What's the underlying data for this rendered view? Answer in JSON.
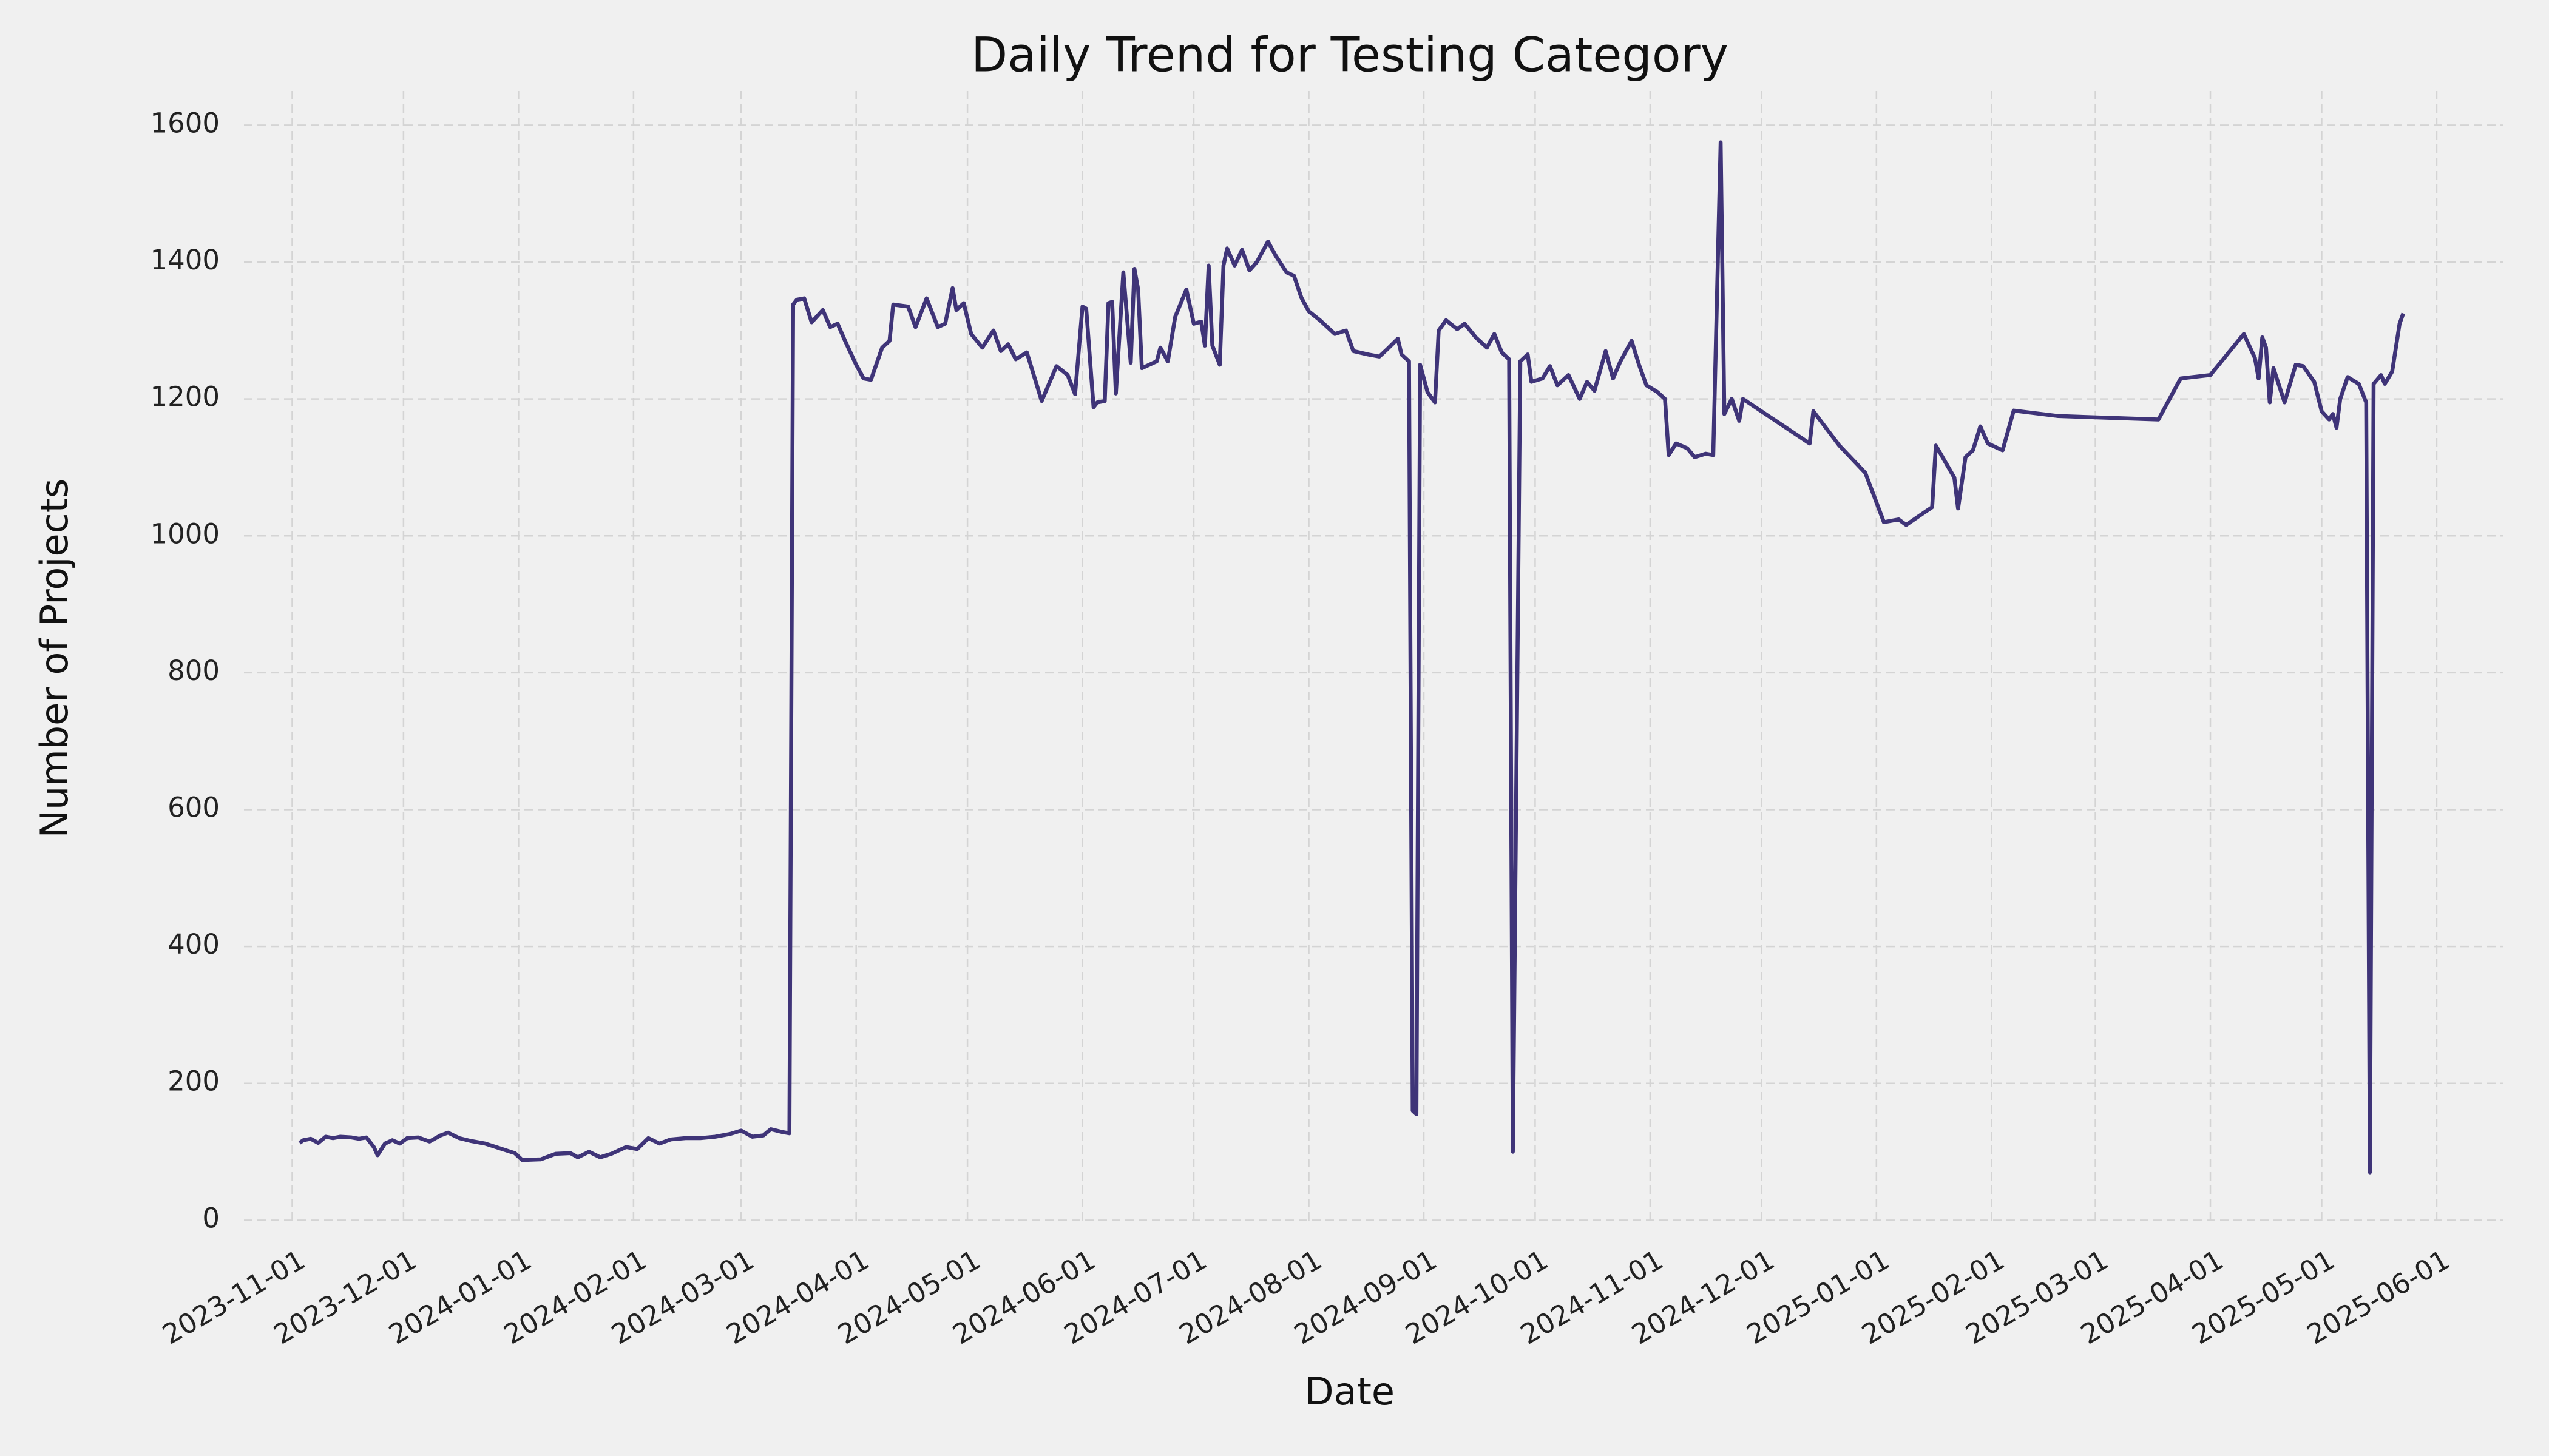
{
  "chart_data": {
    "type": "line",
    "title": "Daily Trend for Testing Category",
    "xlabel": "Date",
    "ylabel": "Number of Projects",
    "color": "#3f3478",
    "grid": true,
    "xlim": [
      "2023-10-19",
      "2025-06-19"
    ],
    "xticks": [
      "2023-11-01",
      "2023-12-01",
      "2024-01-01",
      "2024-02-01",
      "2024-03-01",
      "2024-04-01",
      "2024-05-01",
      "2024-06-01",
      "2024-07-01",
      "2024-08-01",
      "2024-09-01",
      "2024-10-01",
      "2024-11-01",
      "2024-12-01",
      "2025-01-01",
      "2025-02-01",
      "2025-03-01",
      "2025-04-01",
      "2025-05-01",
      "2025-06-01"
    ],
    "ylim": [
      -5,
      1650
    ],
    "yticks": [
      0,
      200,
      400,
      600,
      800,
      1000,
      1200,
      1400,
      1600
    ],
    "x": [
      "2023-11-03",
      "2023-11-04",
      "2023-11-06",
      "2023-11-08",
      "2023-11-10",
      "2023-11-12",
      "2023-11-14",
      "2023-11-17",
      "2023-11-19",
      "2023-11-21",
      "2023-11-23",
      "2023-11-24",
      "2023-11-26",
      "2023-11-28",
      "2023-11-30",
      "2023-12-02",
      "2023-12-05",
      "2023-12-08",
      "2023-12-11",
      "2023-12-13",
      "2023-12-16",
      "2023-12-19",
      "2023-12-23",
      "2023-12-27",
      "2023-12-31",
      "2024-01-02",
      "2024-01-07",
      "2024-01-11",
      "2024-01-15",
      "2024-01-17",
      "2024-01-20",
      "2024-01-23",
      "2024-01-26",
      "2024-01-30",
      "2024-02-02",
      "2024-02-05",
      "2024-02-08",
      "2024-02-11",
      "2024-02-15",
      "2024-02-19",
      "2024-02-23",
      "2024-02-27",
      "2024-03-01",
      "2024-03-04",
      "2024-03-07",
      "2024-03-09",
      "2024-03-12",
      "2024-03-14",
      "2024-03-15",
      "2024-03-16",
      "2024-03-18",
      "2024-03-20",
      "2024-03-23",
      "2024-03-25",
      "2024-03-27",
      "2024-03-29",
      "2024-04-01",
      "2024-04-03",
      "2024-04-05",
      "2024-04-08",
      "2024-04-10",
      "2024-04-11",
      "2024-04-15",
      "2024-04-17",
      "2024-04-20",
      "2024-04-23",
      "2024-04-25",
      "2024-04-27",
      "2024-04-28",
      "2024-04-30",
      "2024-05-02",
      "2024-05-05",
      "2024-05-08",
      "2024-05-10",
      "2024-05-12",
      "2024-05-14",
      "2024-05-17",
      "2024-05-21",
      "2024-05-25",
      "2024-05-28",
      "2024-05-30",
      "2024-06-01",
      "2024-06-02",
      "2024-06-04",
      "2024-06-05",
      "2024-06-07",
      "2024-06-08",
      "2024-06-09",
      "2024-06-10",
      "2024-06-12",
      "2024-06-14",
      "2024-06-15",
      "2024-06-16",
      "2024-06-17",
      "2024-06-21",
      "2024-06-22",
      "2024-06-24",
      "2024-06-26",
      "2024-06-29",
      "2024-07-01",
      "2024-07-03",
      "2024-07-04",
      "2024-07-05",
      "2024-07-06",
      "2024-07-08",
      "2024-07-09",
      "2024-07-10",
      "2024-07-12",
      "2024-07-14",
      "2024-07-16",
      "2024-07-18",
      "2024-07-21",
      "2024-07-23",
      "2024-07-26",
      "2024-07-28",
      "2024-07-30",
      "2024-08-01",
      "2024-08-04",
      "2024-08-08",
      "2024-08-11",
      "2024-08-13",
      "2024-08-17",
      "2024-08-20",
      "2024-08-22",
      "2024-08-25",
      "2024-08-26",
      "2024-08-28",
      "2024-08-29",
      "2024-08-30",
      "2024-08-31",
      "2024-09-02",
      "2024-09-04",
      "2024-09-05",
      "2024-09-07",
      "2024-09-10",
      "2024-09-12",
      "2024-09-15",
      "2024-09-18",
      "2024-09-20",
      "2024-09-22",
      "2024-09-24",
      "2024-09-25",
      "2024-09-27",
      "2024-09-29",
      "2024-09-30",
      "2024-10-03",
      "2024-10-05",
      "2024-10-07",
      "2024-10-10",
      "2024-10-13",
      "2024-10-15",
      "2024-10-17",
      "2024-10-20",
      "2024-10-22",
      "2024-10-24",
      "2024-10-27",
      "2024-10-29",
      "2024-10-31",
      "2024-11-03",
      "2024-11-05",
      "2024-11-06",
      "2024-11-08",
      "2024-11-11",
      "2024-11-13",
      "2024-11-16",
      "2024-11-18",
      "2024-11-20",
      "2024-11-21",
      "2024-11-23",
      "2024-11-25",
      "2024-11-26",
      "2024-12-14",
      "2024-12-15",
      "2024-12-22",
      "2024-12-29",
      "2025-01-03",
      "2025-01-07",
      "2025-01-09",
      "2025-01-16",
      "2025-01-17",
      "2025-01-22",
      "2025-01-23",
      "2025-01-25",
      "2025-01-27",
      "2025-01-29",
      "2025-01-31",
      "2025-02-04",
      "2025-02-07",
      "2025-02-19",
      "2025-03-18",
      "2025-03-24",
      "2025-04-01",
      "2025-04-10",
      "2025-04-13",
      "2025-04-14",
      "2025-04-15",
      "2025-04-16",
      "2025-04-17",
      "2025-04-18",
      "2025-04-21",
      "2025-04-24",
      "2025-04-26",
      "2025-04-29",
      "2025-05-01",
      "2025-05-03",
      "2025-05-04",
      "2025-05-05",
      "2025-05-06",
      "2025-05-08",
      "2025-05-11",
      "2025-05-13",
      "2025-05-14",
      "2025-05-15",
      "2025-05-17",
      "2025-05-18",
      "2025-05-20",
      "2025-05-22",
      "2025-05-23"
    ],
    "values": [
      113,
      117,
      119,
      113,
      122,
      120,
      122,
      121,
      119,
      121,
      107,
      95,
      112,
      117,
      112,
      120,
      121,
      115,
      124,
      128,
      120,
      116,
      112,
      105,
      98,
      88,
      89,
      97,
      98,
      92,
      100,
      92,
      97,
      107,
      104,
      120,
      112,
      118,
      120,
      120,
      122,
      126,
      131,
      122,
      124,
      133,
      129,
      127,
      1338,
      1345,
      1347,
      1312,
      1330,
      1305,
      1310,
      1285,
      1250,
      1230,
      1228,
      1275,
      1285,
      1338,
      1335,
      1305,
      1347,
      1305,
      1310,
      1362,
      1330,
      1340,
      1295,
      1275,
      1300,
      1270,
      1280,
      1258,
      1268,
      1197,
      1248,
      1235,
      1207,
      1335,
      1332,
      1188,
      1195,
      1197,
      1340,
      1342,
      1208,
      1385,
      1253,
      1390,
      1360,
      1245,
      1255,
      1275,
      1255,
      1320,
      1360,
      1310,
      1313,
      1278,
      1395,
      1278,
      1250,
      1395,
      1420,
      1395,
      1418,
      1388,
      1400,
      1430,
      1410,
      1385,
      1380,
      1348,
      1328,
      1315,
      1295,
      1300,
      1270,
      1265,
      1262,
      1272,
      1288,
      1265,
      1255,
      160,
      155,
      1250,
      1210,
      1195,
      1300,
      1315,
      1302,
      1310,
      1290,
      1275,
      1295,
      1268,
      1258,
      100,
      1255,
      1265,
      1225,
      1230,
      1248,
      1220,
      1235,
      1200,
      1225,
      1212,
      1270,
      1230,
      1255,
      1285,
      1250,
      1220,
      1210,
      1200,
      1118,
      1135,
      1128,
      1115,
      1120,
      1118,
      1575,
      1178,
      1200,
      1168,
      1200,
      1135,
      1182,
      1132,
      1092,
      1020,
      1024,
      1016,
      1042,
      1132,
      1085,
      1040,
      1115,
      1125,
      1160,
      1135,
      1125,
      1183,
      1175,
      1170,
      1230,
      1235,
      1295,
      1260,
      1230,
      1290,
      1275,
      1195,
      1245,
      1195,
      1250,
      1248,
      1225,
      1182,
      1170,
      1178,
      1158,
      1200,
      1232,
      1222,
      1195,
      70,
      1222,
      1235,
      1222,
      1240,
      1310,
      1325
    ]
  }
}
